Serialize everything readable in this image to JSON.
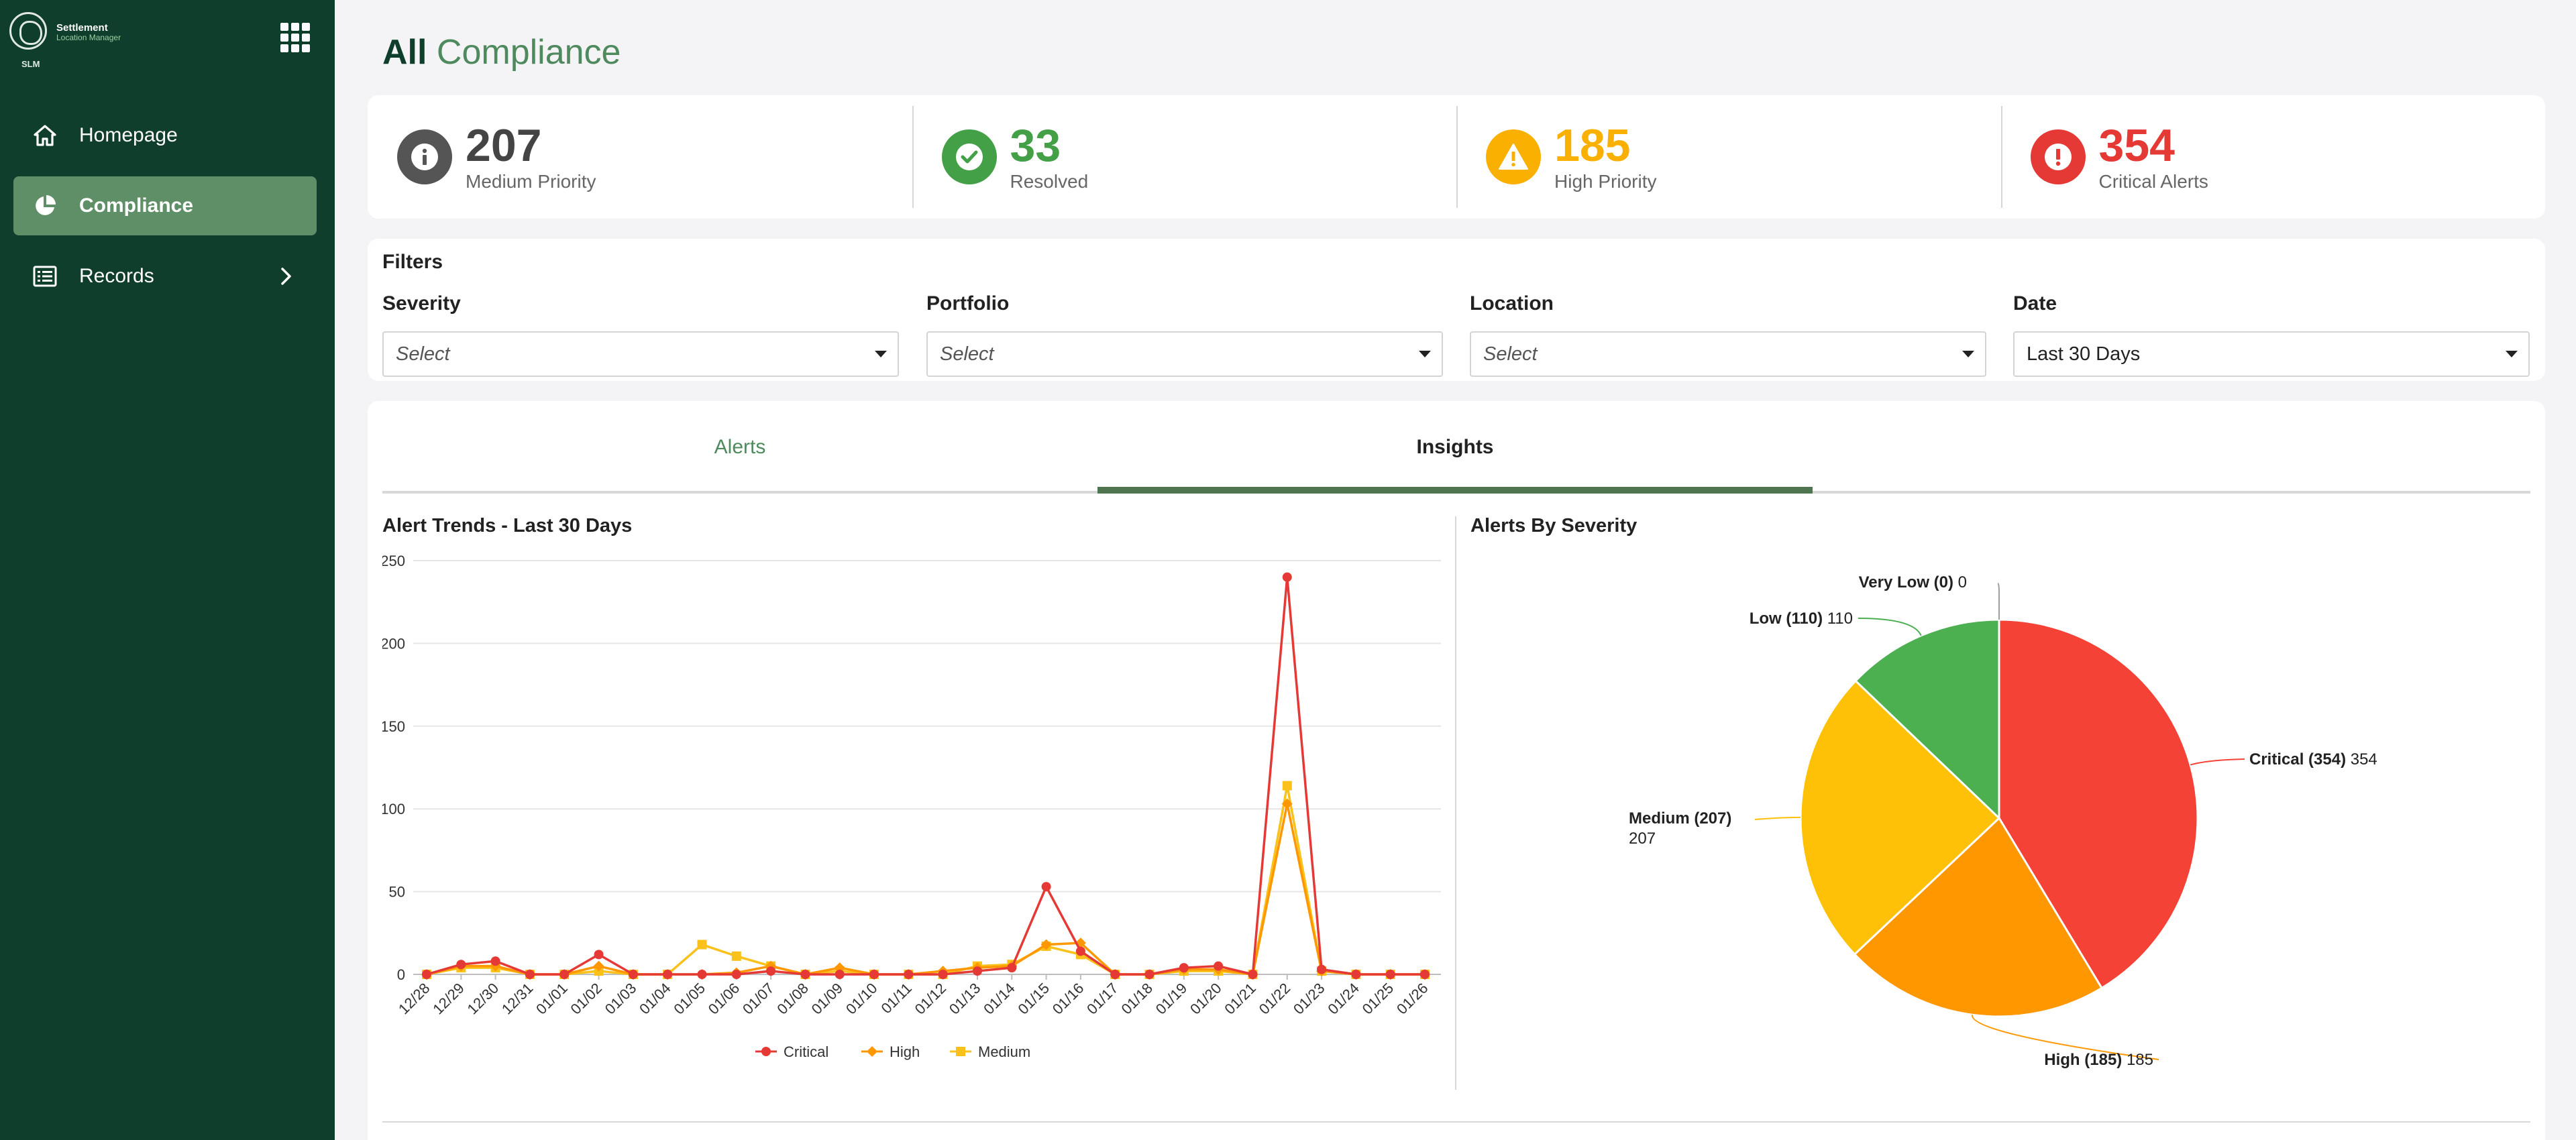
{
  "sidebar": {
    "logo": {
      "line1": "Settlement",
      "line2": "Location Manager",
      "abbr": "SLM"
    },
    "items": [
      {
        "label": "Homepage",
        "icon": "home-icon",
        "active": false
      },
      {
        "label": "Compliance",
        "icon": "pie-chart-icon",
        "active": true
      },
      {
        "label": "Records",
        "icon": "list-icon",
        "active": false,
        "has_submenu": true
      }
    ]
  },
  "header": {
    "title_bold": "All",
    "title_rest": "Compliance"
  },
  "stats": [
    {
      "value": "207",
      "label": "Medium Priority",
      "icon": "info-icon",
      "color": "#555555"
    },
    {
      "value": "33",
      "label": "Resolved",
      "icon": "check-icon",
      "color": "#43a047"
    },
    {
      "value": "185",
      "label": "High Priority",
      "icon": "warning-icon",
      "color": "#f9b000"
    },
    {
      "value": "354",
      "label": "Critical Alerts",
      "icon": "alert-icon",
      "color": "#e53935"
    }
  ],
  "filters": {
    "title": "Filters",
    "items": [
      {
        "label": "Severity",
        "value": "Select",
        "placeholder": true
      },
      {
        "label": "Portfolio",
        "value": "Select",
        "placeholder": true
      },
      {
        "label": "Location",
        "value": "Select",
        "placeholder": true
      },
      {
        "label": "Date",
        "value": "Last 30 Days",
        "placeholder": false
      }
    ]
  },
  "tabs": [
    {
      "label": "Alerts",
      "active": false
    },
    {
      "label": "Insights",
      "active": true
    }
  ],
  "chart_data": [
    {
      "type": "line",
      "title": "Alert Trends - Last 30 Days",
      "xlabel": "",
      "ylabel": "",
      "ylim": [
        0,
        250
      ],
      "yticks": [
        0,
        50,
        100,
        150,
        200,
        250
      ],
      "grid": true,
      "legend_position": "bottom",
      "categories": [
        "12/28",
        "12/29",
        "12/30",
        "12/31",
        "01/01",
        "01/02",
        "01/03",
        "01/04",
        "01/05",
        "01/06",
        "01/07",
        "01/08",
        "01/09",
        "01/10",
        "01/11",
        "01/12",
        "01/13",
        "01/14",
        "01/15",
        "01/16",
        "01/17",
        "01/18",
        "01/19",
        "01/20",
        "01/21",
        "01/22",
        "01/23",
        "01/24",
        "01/25",
        "01/26"
      ],
      "series": [
        {
          "name": "Critical",
          "color": "#e53935",
          "marker": "circle",
          "values": [
            0,
            6,
            8,
            0,
            0,
            12,
            0,
            0,
            0,
            0,
            2,
            0,
            0,
            0,
            0,
            0,
            2,
            4,
            53,
            14,
            0,
            0,
            4,
            5,
            0,
            240,
            3,
            0,
            0,
            0
          ]
        },
        {
          "name": "High",
          "color": "#ff9800",
          "marker": "diamond",
          "values": [
            0,
            5,
            5,
            0,
            0,
            5,
            0,
            0,
            0,
            1,
            5,
            0,
            4,
            0,
            0,
            2,
            4,
            5,
            18,
            19,
            0,
            0,
            3,
            3,
            0,
            103,
            2,
            0,
            0,
            0
          ]
        },
        {
          "name": "Medium",
          "color": "#f9c11a",
          "marker": "square",
          "values": [
            0,
            4,
            4,
            0,
            0,
            2,
            0,
            0,
            18,
            11,
            5,
            0,
            2,
            0,
            0,
            0,
            5,
            6,
            17,
            12,
            0,
            0,
            2,
            2,
            0,
            114,
            2,
            0,
            0,
            0
          ]
        }
      ]
    },
    {
      "type": "pie",
      "title": "Alerts By Severity",
      "slices": [
        {
          "name": "Critical (354)",
          "value": 354,
          "value_label": "354",
          "color": "#f44336"
        },
        {
          "name": "High (185)",
          "value": 185,
          "value_label": "185",
          "color": "#ff9800"
        },
        {
          "name": "Medium (207)",
          "value": 207,
          "value_label": "207",
          "color": "#ffc107"
        },
        {
          "name": "Low (110)",
          "value": 110,
          "value_label": "110",
          "color": "#4caf50"
        },
        {
          "name": "Very Low (0)",
          "value": 0,
          "value_label": "0",
          "color": "#9e9e9e"
        }
      ]
    }
  ]
}
